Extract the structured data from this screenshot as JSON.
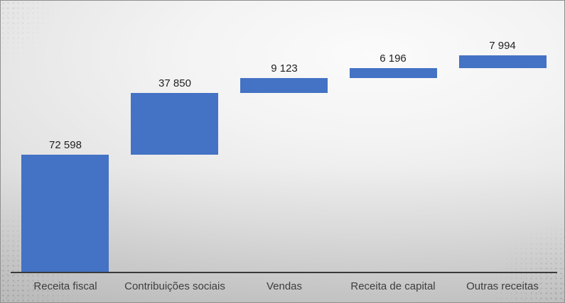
{
  "chart_data": {
    "type": "bar",
    "subtype": "waterfall-cumulative",
    "title": "",
    "xlabel": "",
    "ylabel": "",
    "grid": false,
    "legend": false,
    "categories": [
      "Receita fiscal",
      "Contribuições sociais",
      "Vendas",
      "Receita de capital",
      "Outras receitas"
    ],
    "values": [
      72598,
      37850,
      9123,
      6196,
      7994
    ],
    "value_labels": [
      "72 598",
      "37 850",
      "9 123",
      "6 196",
      "7 994"
    ],
    "cumulative_start": [
      0,
      72598,
      110448,
      119571,
      125767
    ],
    "cumulative_end": [
      72598,
      110448,
      119571,
      125767,
      133761
    ],
    "total": 133761,
    "ylim": [
      0,
      133761
    ],
    "bar_color": "#4472C4",
    "axis_line_color": "#3a3a3a",
    "value_label_color": "#1f1f1f",
    "category_label_color": "#3d3d3d"
  }
}
